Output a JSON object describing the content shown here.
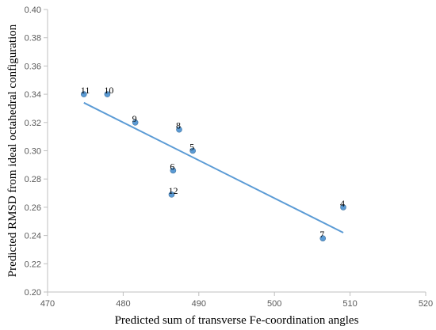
{
  "chart_data": {
    "type": "scatter",
    "title": "",
    "xlabel": "Predicted sum of transverse Fe-coordination angles",
    "ylabel": "Predicted RMSD from ideal octahedral configuration",
    "xlim": [
      470,
      520
    ],
    "ylim": [
      0.2,
      0.4
    ],
    "x_ticks": [
      470,
      480,
      490,
      500,
      510,
      520
    ],
    "x_tick_labels": [
      "470",
      "480",
      "490",
      "500",
      "510",
      "520"
    ],
    "y_ticks": [
      0.2,
      0.22,
      0.24,
      0.26,
      0.28,
      0.3,
      0.32,
      0.34,
      0.36,
      0.38,
      0.4
    ],
    "y_tick_labels": [
      "0.20",
      "0.22",
      "0.24",
      "0.26",
      "0.28",
      "0.30",
      "0.32",
      "0.34",
      "0.36",
      "0.38",
      "0.40"
    ],
    "grid": false,
    "legend": "none",
    "points": [
      {
        "label": "11",
        "x": 474.8,
        "y": 0.34
      },
      {
        "label": "10",
        "x": 477.9,
        "y": 0.34
      },
      {
        "label": "9",
        "x": 481.6,
        "y": 0.32
      },
      {
        "label": "8",
        "x": 487.4,
        "y": 0.315
      },
      {
        "label": "5",
        "x": 489.2,
        "y": 0.3
      },
      {
        "label": "6",
        "x": 486.6,
        "y": 0.286
      },
      {
        "label": "12",
        "x": 486.4,
        "y": 0.269
      },
      {
        "label": "4",
        "x": 509.1,
        "y": 0.26
      },
      {
        "label": "7",
        "x": 506.4,
        "y": 0.238
      }
    ],
    "trendline": {
      "x": [
        474.8,
        509.1
      ],
      "y": [
        0.334,
        0.242
      ]
    },
    "colors": {
      "point": "#5b9bd5",
      "trendline": "#5b9bd5",
      "axis": "#bfbfbf"
    }
  }
}
